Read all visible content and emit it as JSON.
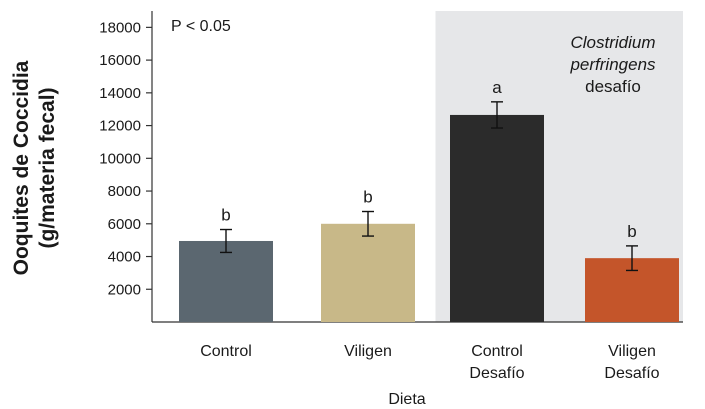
{
  "chart_data": {
    "type": "bar",
    "xlabel": "Dieta",
    "ylabel_lines": [
      "Ooquites de Coccidia",
      "(g/materia fecal)"
    ],
    "ylim": [
      0,
      19000
    ],
    "yticks": [
      2000,
      4000,
      6000,
      8000,
      10000,
      12000,
      14000,
      16000,
      18000
    ],
    "categories": [
      [
        "Control"
      ],
      [
        "Viligen"
      ],
      [
        "Control",
        "Desafío"
      ],
      [
        "Viligen",
        "Desafío"
      ]
    ],
    "values": [
      4950,
      6000,
      12650,
      3900
    ],
    "errors": [
      700,
      750,
      800,
      750
    ],
    "significance": [
      "b",
      "b",
      "a",
      "b"
    ],
    "colors": [
      "#5b6770",
      "#c8b888",
      "#2b2b2b",
      "#c4552a"
    ],
    "annotation": "P < 0.05",
    "region": {
      "start_index": 2,
      "color": "#e6e7e9",
      "label_lines": [
        {
          "text": "Clostridium",
          "italic": true
        },
        {
          "text": "perfringens",
          "italic": true
        },
        {
          "text": "desafío",
          "italic": false
        }
      ]
    }
  }
}
